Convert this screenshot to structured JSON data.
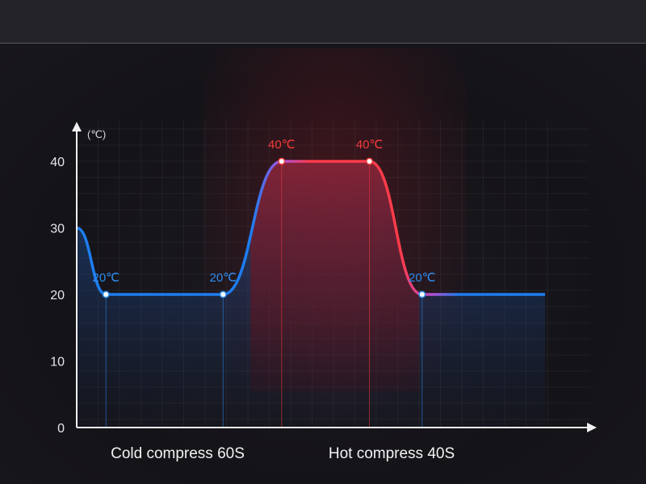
{
  "chart_data": {
    "type": "line",
    "unit_label": "(℃)",
    "y_ticks": [
      0,
      10,
      20,
      30,
      40
    ],
    "ylim": [
      0,
      40
    ],
    "x_phases": [
      "Cold compress 60S",
      "Hot compress 40S"
    ],
    "grid": true,
    "curve": [
      {
        "x": 0,
        "y": 30
      },
      {
        "x": 10,
        "y": 20
      },
      {
        "x": 50,
        "y": 20
      },
      {
        "x": 70,
        "y": 40
      },
      {
        "x": 100,
        "y": 40
      },
      {
        "x": 118,
        "y": 20
      },
      {
        "x": 160,
        "y": 20
      }
    ],
    "points": [
      {
        "x": 10,
        "y": 20,
        "label": "20℃",
        "color": "#2d8cf0"
      },
      {
        "x": 50,
        "y": 20,
        "label": "20℃",
        "color": "#2d8cf0"
      },
      {
        "x": 70,
        "y": 40,
        "label": "40℃",
        "color": "#f03a3a"
      },
      {
        "x": 100,
        "y": 40,
        "label": "40℃",
        "color": "#f03a3a"
      },
      {
        "x": 118,
        "y": 20,
        "label": "20℃",
        "color": "#2d8cf0"
      }
    ],
    "colors": {
      "cold": "#1e7df0",
      "hot": "#ff3b4a"
    }
  }
}
